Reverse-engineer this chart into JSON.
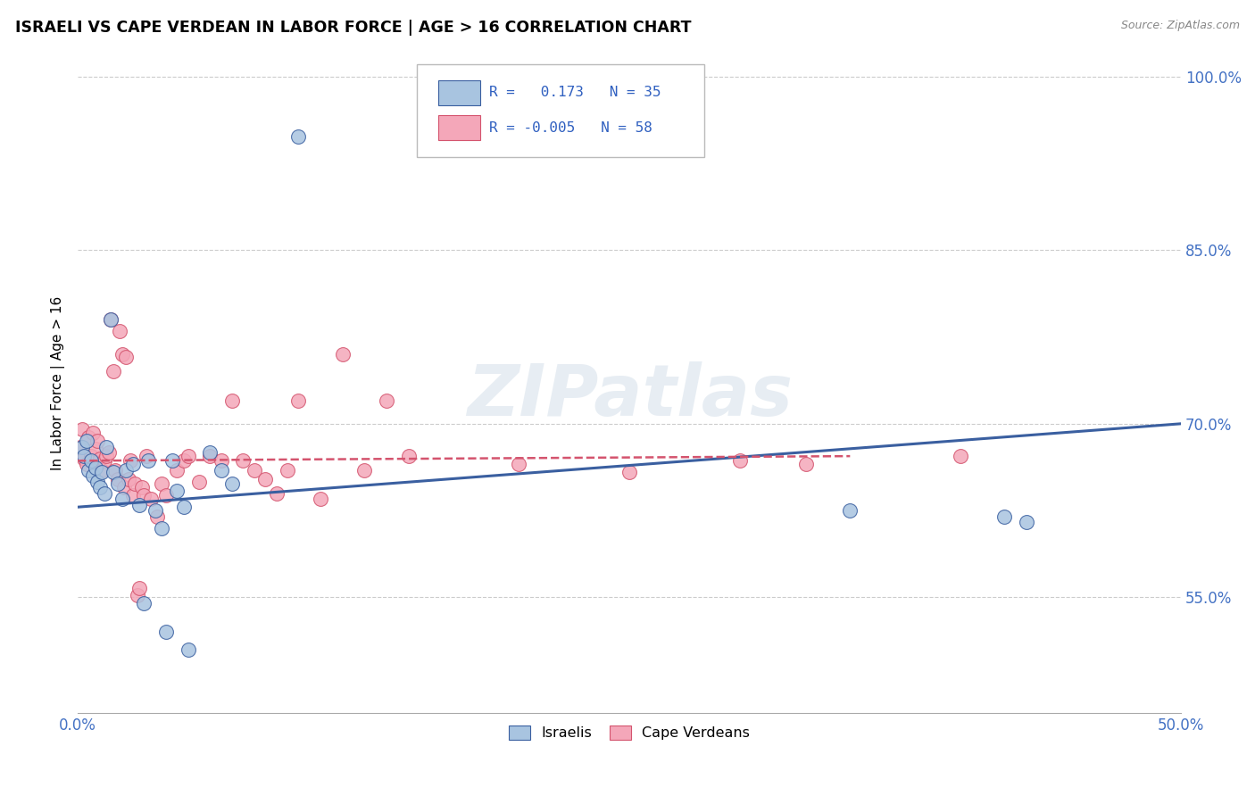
{
  "title": "ISRAELI VS CAPE VERDEAN IN LABOR FORCE | AGE > 16 CORRELATION CHART",
  "source": "Source: ZipAtlas.com",
  "ylabel": "In Labor Force | Age > 16",
  "xlim": [
    0.0,
    0.5
  ],
  "ylim": [
    0.45,
    1.02
  ],
  "yticks": [
    0.55,
    0.7,
    0.85,
    1.0
  ],
  "ytick_labels": [
    "55.0%",
    "70.0%",
    "85.0%",
    "100.0%"
  ],
  "xticks": [
    0.0,
    0.1,
    0.2,
    0.3,
    0.4,
    0.5
  ],
  "xtick_labels": [
    "0.0%",
    "",
    "",
    "",
    "",
    "50.0%"
  ],
  "watermark": "ZIPatlas",
  "legend_R_israeli": "0.173",
  "legend_N_israeli": "35",
  "legend_R_capeverdean": "-0.005",
  "legend_N_capeverdean": "58",
  "israeli_color": "#a8c4e0",
  "capeverdean_color": "#f4a7b9",
  "israeli_line_color": "#3a5fa0",
  "capeverdean_line_color": "#d4546e",
  "israeli_line": [
    [
      0.0,
      0.628
    ],
    [
      0.5,
      0.7
    ]
  ],
  "capeverdean_line": [
    [
      0.0,
      0.668
    ],
    [
      0.35,
      0.672
    ]
  ],
  "israeli_points": [
    [
      0.002,
      0.68
    ],
    [
      0.003,
      0.672
    ],
    [
      0.004,
      0.685
    ],
    [
      0.005,
      0.66
    ],
    [
      0.006,
      0.668
    ],
    [
      0.007,
      0.655
    ],
    [
      0.008,
      0.662
    ],
    [
      0.009,
      0.65
    ],
    [
      0.01,
      0.645
    ],
    [
      0.011,
      0.658
    ],
    [
      0.012,
      0.64
    ],
    [
      0.013,
      0.68
    ],
    [
      0.015,
      0.79
    ],
    [
      0.016,
      0.658
    ],
    [
      0.018,
      0.648
    ],
    [
      0.02,
      0.635
    ],
    [
      0.022,
      0.66
    ],
    [
      0.025,
      0.665
    ],
    [
      0.028,
      0.63
    ],
    [
      0.03,
      0.545
    ],
    [
      0.032,
      0.668
    ],
    [
      0.035,
      0.625
    ],
    [
      0.038,
      0.61
    ],
    [
      0.04,
      0.52
    ],
    [
      0.043,
      0.668
    ],
    [
      0.045,
      0.642
    ],
    [
      0.048,
      0.628
    ],
    [
      0.05,
      0.505
    ],
    [
      0.06,
      0.675
    ],
    [
      0.065,
      0.66
    ],
    [
      0.07,
      0.648
    ],
    [
      0.1,
      0.948
    ],
    [
      0.35,
      0.625
    ],
    [
      0.42,
      0.62
    ],
    [
      0.43,
      0.615
    ]
  ],
  "capeverdean_points": [
    [
      0.001,
      0.68
    ],
    [
      0.002,
      0.695
    ],
    [
      0.003,
      0.67
    ],
    [
      0.004,
      0.665
    ],
    [
      0.005,
      0.688
    ],
    [
      0.006,
      0.672
    ],
    [
      0.007,
      0.692
    ],
    [
      0.008,
      0.678
    ],
    [
      0.009,
      0.685
    ],
    [
      0.01,
      0.67
    ],
    [
      0.011,
      0.66
    ],
    [
      0.012,
      0.668
    ],
    [
      0.013,
      0.672
    ],
    [
      0.014,
      0.675
    ],
    [
      0.015,
      0.79
    ],
    [
      0.016,
      0.745
    ],
    [
      0.017,
      0.66
    ],
    [
      0.018,
      0.652
    ],
    [
      0.019,
      0.78
    ],
    [
      0.02,
      0.76
    ],
    [
      0.021,
      0.645
    ],
    [
      0.022,
      0.758
    ],
    [
      0.023,
      0.652
    ],
    [
      0.024,
      0.668
    ],
    [
      0.025,
      0.638
    ],
    [
      0.026,
      0.648
    ],
    [
      0.027,
      0.552
    ],
    [
      0.028,
      0.558
    ],
    [
      0.029,
      0.645
    ],
    [
      0.03,
      0.638
    ],
    [
      0.031,
      0.672
    ],
    [
      0.033,
      0.635
    ],
    [
      0.036,
      0.62
    ],
    [
      0.038,
      0.648
    ],
    [
      0.04,
      0.638
    ],
    [
      0.045,
      0.66
    ],
    [
      0.048,
      0.668
    ],
    [
      0.05,
      0.672
    ],
    [
      0.055,
      0.65
    ],
    [
      0.06,
      0.672
    ],
    [
      0.065,
      0.668
    ],
    [
      0.07,
      0.72
    ],
    [
      0.075,
      0.668
    ],
    [
      0.08,
      0.66
    ],
    [
      0.085,
      0.652
    ],
    [
      0.09,
      0.64
    ],
    [
      0.095,
      0.66
    ],
    [
      0.1,
      0.72
    ],
    [
      0.11,
      0.635
    ],
    [
      0.12,
      0.76
    ],
    [
      0.13,
      0.66
    ],
    [
      0.14,
      0.72
    ],
    [
      0.15,
      0.672
    ],
    [
      0.2,
      0.665
    ],
    [
      0.25,
      0.658
    ],
    [
      0.3,
      0.668
    ],
    [
      0.33,
      0.665
    ],
    [
      0.4,
      0.672
    ]
  ]
}
